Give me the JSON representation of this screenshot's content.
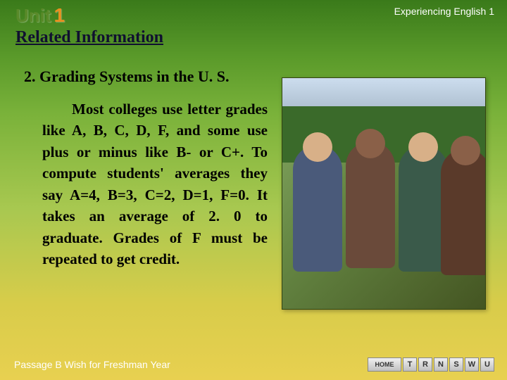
{
  "header": {
    "course_title": "Experiencing English 1",
    "unit_prefix": "Unit",
    "unit_number": "1",
    "section_title": "Related Information"
  },
  "content": {
    "subtitle": "2. Grading Systems in the U. S.",
    "body": "Most colleges use letter grades like A, B, C, D, F, and some use plus or minus like B- or C+. To compute students' averages they say A=4, B=3, C=2, D=1, F=0. It takes an average of 2. 0 to graduate. Grades of F must be repeated to get credit."
  },
  "footer": {
    "passage": "Passage B Wish for Freshman Year"
  },
  "nav": {
    "home": "HOME",
    "buttons": [
      "T",
      "R",
      "N",
      "S",
      "W",
      "U"
    ]
  },
  "styling": {
    "gradient_top": "#3a7a1a",
    "gradient_bottom": "#e8d050",
    "title_color": "#101030",
    "unit_color": "#5a8a2a",
    "unit_num_color": "#e89020",
    "text_color": "#000000",
    "header_footer_color": "#ffffff"
  }
}
